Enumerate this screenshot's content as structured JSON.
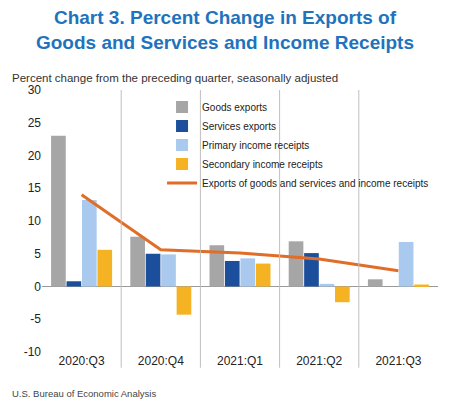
{
  "chart_data": {
    "type": "bar",
    "title": "Chart 3. Percent Change in Exports of Goods and Services and Income Receipts",
    "subtitle": "Percent change from the preceding quarter, seasonally adjusted",
    "annotations": [
      "U.S. Bureau of Economic Analysis"
    ],
    "categories": [
      "2020:Q3",
      "2020:Q4",
      "2021:Q1",
      "2021:Q2",
      "2021:Q3"
    ],
    "series": [
      {
        "name": "Goods exports",
        "type": "bar",
        "color": "#a6a6a6",
        "values": [
          23.0,
          7.6,
          6.3,
          6.9,
          1.1
        ]
      },
      {
        "name": "Services exports",
        "type": "bar",
        "color": "#1b4f9c",
        "values": [
          0.8,
          5.0,
          3.9,
          5.1,
          0.0
        ]
      },
      {
        "name": "Primary income receipts",
        "type": "bar",
        "color": "#a9c9ee",
        "values": [
          13.2,
          4.9,
          4.3,
          0.4,
          6.8
        ]
      },
      {
        "name": "Secondary income receipts",
        "type": "bar",
        "color": "#f5b323",
        "values": [
          5.6,
          -4.3,
          3.5,
          -2.4,
          0.3
        ]
      },
      {
        "name": "Exports of goods and services and income receipts",
        "type": "line",
        "color": "#e06d28",
        "values": [
          14.0,
          5.6,
          5.1,
          4.2,
          2.4
        ]
      }
    ],
    "ylim": [
      -10,
      30
    ],
    "yticks": [
      -10,
      -5,
      0,
      5,
      10,
      15,
      20,
      25,
      30
    ],
    "grid": false,
    "legend": "upper right"
  }
}
